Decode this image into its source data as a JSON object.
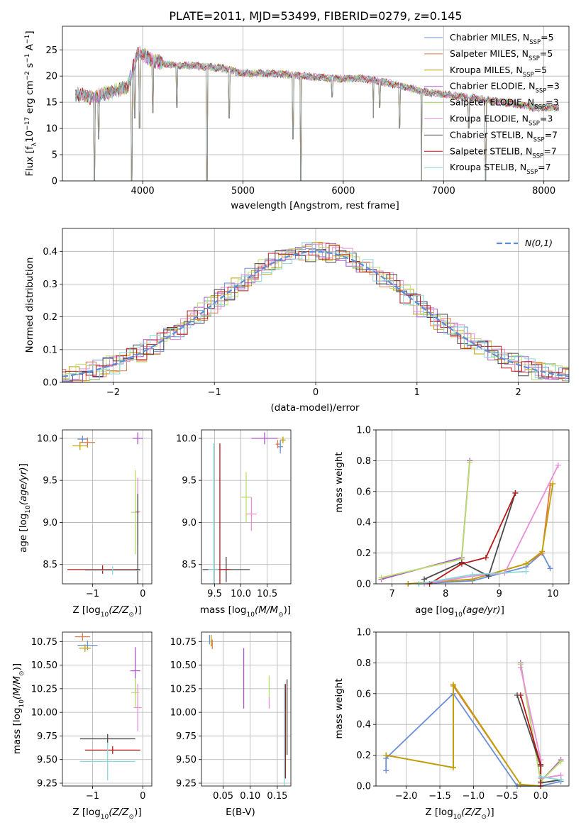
{
  "figure": {
    "title": "PLATE=2011, MJD=53499, FIBERID=0279, z=0.145"
  },
  "colors": [
    "#6b8fd6",
    "#e2784a",
    "#c0a000",
    "#a855c8",
    "#b8de6a",
    "#e88fd6",
    "#4a4a4a",
    "#b81818",
    "#8ad8d8"
  ],
  "legend_entries": [
    "Chabrier MILES, N",
    "Salpeter MILES, N",
    "Kroupa MILES, N",
    "Chabrier ELODIE, N",
    "Salpeter ELODIE, N",
    "Kroupa ELODIE, N",
    "Chabrier STELIB, N",
    "Salpeter STELIB, N",
    "Kroupa STELIB, N"
  ],
  "legend_sub": "SSP",
  "legend_counts": [
    "=5",
    "=5",
    "=5",
    "=3",
    "=3",
    "=3",
    "=7",
    "=7",
    "=7"
  ],
  "chart_data": [
    {
      "id": "spectrum",
      "type": "line",
      "xlabel": "wavelength [Angstrom, rest frame]",
      "ylabel": "Flux [f",
      "ylabel_rest": "10",
      "ylabel_units": "erg cm",
      "xlim": [
        3200,
        8250
      ],
      "ylim": [
        0,
        29.5
      ],
      "xticks": [
        4000,
        5000,
        6000,
        7000,
        8000
      ],
      "yticks": [
        0,
        5,
        10,
        15,
        20,
        25
      ],
      "continuum": [
        [
          3330,
          16.5
        ],
        [
          3500,
          16
        ],
        [
          3700,
          17
        ],
        [
          3850,
          18
        ],
        [
          3950,
          24.5
        ],
        [
          4100,
          23
        ],
        [
          4300,
          22
        ],
        [
          4500,
          22
        ],
        [
          4800,
          21.5
        ],
        [
          5000,
          20.5
        ],
        [
          5300,
          20.5
        ],
        [
          5600,
          20
        ],
        [
          5900,
          19.5
        ],
        [
          6200,
          19.5
        ],
        [
          6500,
          18.5
        ],
        [
          6800,
          17
        ],
        [
          7000,
          16.5
        ],
        [
          7300,
          15.8
        ],
        [
          7600,
          15
        ],
        [
          7900,
          14
        ],
        [
          8150,
          14
        ]
      ],
      "spikes": [
        [
          3520,
          0
        ],
        [
          3560,
          8
        ],
        [
          3890,
          0
        ],
        [
          3920,
          12
        ],
        [
          3970,
          10
        ],
        [
          4102,
          13
        ],
        [
          4340,
          14
        ],
        [
          4640,
          0
        ],
        [
          4861,
          12
        ],
        [
          5500,
          8
        ],
        [
          5577,
          0
        ],
        [
          5890,
          16
        ],
        [
          6300,
          12
        ],
        [
          6363,
          14
        ],
        [
          6563,
          10
        ],
        [
          6780,
          0
        ],
        [
          7250,
          10
        ],
        [
          7420,
          0
        ]
      ]
    },
    {
      "id": "residuals",
      "type": "histogram",
      "xlabel": "(data-model)/error",
      "ylabel": "Normed distribution",
      "xlim": [
        -2.5,
        2.5
      ],
      "ylim": [
        0,
        0.47
      ],
      "xticks": [
        -2,
        -1,
        0,
        1,
        2
      ],
      "yticks": [
        0.0,
        0.1,
        0.2,
        0.3,
        0.4
      ],
      "gaussian_label": "N(0,1)",
      "bin_width": 0.1
    },
    {
      "id": "age_vs_Z",
      "type": "scatter",
      "xlabel": "Z [log",
      "ylabel": "age  [log",
      "xlim": [
        -1.6,
        0.18
      ],
      "ylim": [
        8.27,
        10.1
      ],
      "xticks": [
        -1,
        0
      ],
      "yticks": [
        8.5,
        9.0,
        9.5,
        10.0
      ],
      "points": [
        {
          "x": -1.2,
          "y": 9.99,
          "xerr": 0.1,
          "yerr": 0.04
        },
        {
          "x": -1.1,
          "y": 9.95,
          "xerr": 0.15,
          "yerr": 0.06
        },
        {
          "x": -1.25,
          "y": 9.91,
          "xerr": 0.15,
          "yerr": 0.05
        },
        {
          "x": -0.1,
          "y": 10.0,
          "xerr": 0.1,
          "yerr": 0.07
        },
        {
          "x": -0.15,
          "y": 9.12,
          "xerr": 0.08,
          "yerr": 0.5
        },
        {
          "x": -0.1,
          "y": 9.13,
          "xerr": 0.05,
          "yerr": 0.4
        },
        {
          "x": -0.1,
          "y": 8.44,
          "xerr": 0.05,
          "yerr": 0.9
        },
        {
          "x": -0.8,
          "y": 8.44,
          "xerr": 0.7,
          "yerr": 0.05
        },
        {
          "x": -0.6,
          "y": 8.43,
          "xerr": 0.55,
          "yerr": 0.05
        }
      ]
    },
    {
      "id": "age_vs_mass",
      "type": "scatter",
      "xlabel": "mass [log",
      "xlim": [
        9.25,
        10.95
      ],
      "ylim": [
        8.27,
        10.1
      ],
      "xticks": [
        9.5,
        10.0,
        10.5
      ],
      "yticks": [
        8.5,
        9.0,
        9.5,
        10.0
      ],
      "points": [
        {
          "x": 10.75,
          "y": 9.9,
          "xerr": 0.05,
          "yerr": 0.08
        },
        {
          "x": 10.7,
          "y": 9.93,
          "xerr": 0.04,
          "yerr": 0.05
        },
        {
          "x": 10.8,
          "y": 9.98,
          "xerr": 0.05,
          "yerr": 0.04
        },
        {
          "x": 10.45,
          "y": 10.0,
          "xerr": 0.25,
          "yerr": 0.07
        },
        {
          "x": 10.1,
          "y": 9.3,
          "xerr": 0.1,
          "yerr": 0.3
        },
        {
          "x": 10.2,
          "y": 9.1,
          "xerr": 0.1,
          "yerr": 0.2
        },
        {
          "x": 9.72,
          "y": 8.44,
          "xerr": 0.45,
          "yerr": 0.15
        },
        {
          "x": 9.6,
          "y": 8.44,
          "xerr": 0.2,
          "yerr": 1.5
        },
        {
          "x": 9.48,
          "y": 8.44,
          "xerr": 0.1,
          "yerr": 1.5
        }
      ]
    },
    {
      "id": "weight_vs_age",
      "type": "line",
      "xlabel": "age  [log",
      "ylabel": "mass weight",
      "xlim": [
        6.7,
        10.3
      ],
      "ylim": [
        0,
        1.0
      ],
      "xticks": [
        7,
        8,
        9,
        10
      ],
      "yticks": [
        0.0,
        0.2,
        0.4,
        0.6,
        0.8,
        1.0
      ],
      "series": [
        {
          "x": [
            7.5,
            8.5,
            9.5,
            9.8,
            9.95
          ],
          "y": [
            0.0,
            0.02,
            0.11,
            0.2,
            0.1
          ]
        },
        {
          "x": [
            7.3,
            8.5,
            9.5,
            9.8,
            9.95
          ],
          "y": [
            0.0,
            0.03,
            0.13,
            0.2,
            0.64
          ]
        },
        {
          "x": [
            7.3,
            8.5,
            9.5,
            9.8,
            10.0
          ],
          "y": [
            0.0,
            0.03,
            0.13,
            0.21,
            0.65
          ]
        },
        {
          "x": [
            6.8,
            8.3,
            8.45
          ],
          "y": [
            0.03,
            0.17,
            0.8
          ]
        },
        {
          "x": [
            6.8,
            8.3,
            8.45
          ],
          "y": [
            0.04,
            0.16,
            0.79
          ]
        },
        {
          "x": [
            7.6,
            8.5,
            9.1,
            10.1
          ],
          "y": [
            0.0,
            0.05,
            0.07,
            0.77
          ]
        },
        {
          "x": [
            7.6,
            8.3,
            8.8,
            9.3
          ],
          "y": [
            0.03,
            0.14,
            0.05,
            0.59
          ]
        },
        {
          "x": [
            7.7,
            8.3,
            8.75,
            9.3
          ],
          "y": [
            0.0,
            0.13,
            0.17,
            0.59
          ]
        },
        {
          "x": [
            7.5,
            8.5,
            9.5
          ],
          "y": [
            0.0,
            0.06,
            0.08
          ]
        }
      ]
    },
    {
      "id": "mass_vs_Z",
      "type": "scatter",
      "xlabel": "Z [log",
      "ylabel": "mass [log",
      "xlim": [
        -1.6,
        0.18
      ],
      "ylim": [
        9.22,
        10.85
      ],
      "xticks": [
        -1,
        0
      ],
      "yticks": [
        9.25,
        9.5,
        9.75,
        10.0,
        10.25,
        10.5,
        10.75
      ],
      "points": [
        {
          "x": -1.1,
          "y": 10.71,
          "xerr": 0.2,
          "yerr": 0.05
        },
        {
          "x": -1.2,
          "y": 10.8,
          "xerr": 0.15,
          "yerr": 0.04
        },
        {
          "x": -1.15,
          "y": 10.68,
          "xerr": 0.12,
          "yerr": 0.04
        },
        {
          "x": -0.15,
          "y": 10.44,
          "xerr": 0.1,
          "yerr": 0.25
        },
        {
          "x": -0.15,
          "y": 10.21,
          "xerr": 0.08,
          "yerr": 0.15
        },
        {
          "x": -0.1,
          "y": 10.05,
          "xerr": 0.08,
          "yerr": 0.25
        },
        {
          "x": -0.7,
          "y": 9.72,
          "xerr": 0.55,
          "yerr": 0.05
        },
        {
          "x": -0.6,
          "y": 9.6,
          "xerr": 0.55,
          "yerr": 0.04
        },
        {
          "x": -0.7,
          "y": 9.48,
          "xerr": 0.55,
          "yerr": 0.2
        }
      ]
    },
    {
      "id": "mass_vs_EBV",
      "type": "scatter",
      "xlabel": "E(B-V)",
      "xlim": [
        0.01,
        0.175
      ],
      "ylim": [
        9.22,
        10.85
      ],
      "xticks": [
        0.05,
        0.1,
        0.15
      ],
      "yticks": [
        9.25,
        9.5,
        9.75,
        10.0,
        10.25,
        10.5,
        10.75
      ],
      "points": [
        {
          "x": 0.025,
          "y": 10.77,
          "yerr": 0.05
        },
        {
          "x": 0.03,
          "y": 10.72,
          "yerr": 0.05
        },
        {
          "x": 0.028,
          "y": 10.76,
          "yerr": 0.06
        },
        {
          "x": 0.088,
          "y": 10.36,
          "yerr": 0.32
        },
        {
          "x": 0.135,
          "y": 10.27,
          "yerr": 0.12
        },
        {
          "x": 0.135,
          "y": 10.1,
          "yerr": 0.06
        },
        {
          "x": 0.168,
          "y": 9.95,
          "yerr": 0.4
        },
        {
          "x": 0.165,
          "y": 9.8,
          "yerr": 0.5
        },
        {
          "x": 0.163,
          "y": 9.75,
          "yerr": 0.55
        }
      ]
    },
    {
      "id": "weight_vs_Z",
      "type": "line",
      "xlabel": "Z [log",
      "ylabel": "mass weight",
      "xlim": [
        -2.45,
        0.42
      ],
      "ylim": [
        0,
        1.0
      ],
      "xticks": [
        -2.0,
        -1.5,
        -1.0,
        -0.5,
        0.0
      ],
      "yticks": [
        0.0,
        0.2,
        0.4,
        0.6,
        0.8,
        1.0
      ],
      "series": [
        {
          "x": [
            -2.3,
            -2.3,
            -1.3,
            -0.35,
            0.0,
            0.3
          ],
          "y": [
            0.1,
            0.18,
            0.6,
            0.0,
            0.0,
            0.03
          ]
        },
        {
          "x": [
            -2.3,
            -1.3,
            -1.3,
            -0.3,
            0.0
          ],
          "y": [
            0.2,
            0.12,
            0.65,
            0.01,
            0.0
          ]
        },
        {
          "x": [
            -2.3,
            -1.3,
            -1.3,
            -0.3,
            0.0
          ],
          "y": [
            0.2,
            0.12,
            0.66,
            0.01,
            0.0
          ]
        },
        {
          "x": [
            -0.3,
            0.0,
            0.3
          ],
          "y": [
            0.8,
            0.03,
            0.17
          ]
        },
        {
          "x": [
            -0.3,
            0.0,
            0.3
          ],
          "y": [
            0.79,
            0.03,
            0.16
          ]
        },
        {
          "x": [
            -0.3,
            0.0,
            0.0,
            0.3
          ],
          "y": [
            0.77,
            0.17,
            0.05,
            0.07
          ]
        },
        {
          "x": [
            -0.35,
            0.0,
            0.0,
            0.3
          ],
          "y": [
            0.59,
            0.13,
            0.02,
            0.04
          ]
        },
        {
          "x": [
            -0.3,
            0.0,
            0.0
          ],
          "y": [
            0.59,
            0.14,
            0.0
          ]
        },
        {
          "x": [
            0.0,
            0.3
          ],
          "y": [
            0.06,
            0.04
          ]
        }
      ]
    }
  ]
}
